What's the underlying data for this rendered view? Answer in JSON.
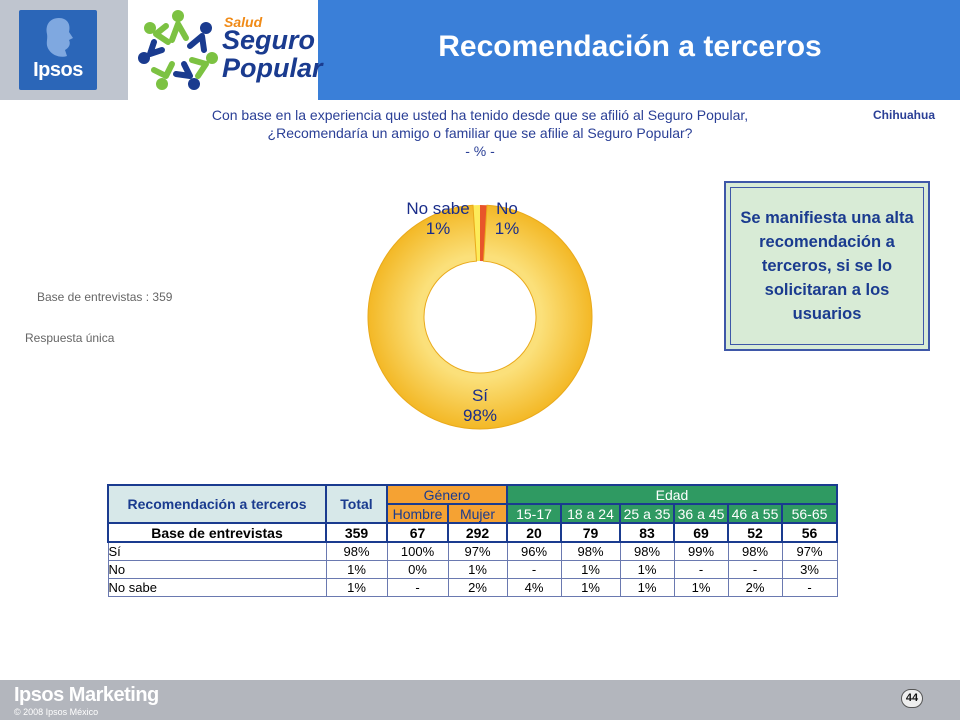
{
  "header": {
    "title": "Recomendación a terceros",
    "ipsos_logo": "Ipsos",
    "brand_logo_salud": "Salud",
    "brand_logo_seguro": "Seguro",
    "brand_logo_popular": "Popular"
  },
  "question": {
    "line1": "Con base en la experiencia que usted ha tenido desde que se afilió al Seguro Popular,",
    "line2": "¿Recomendaría un amigo o familiar que se afilie al Seguro Popular?",
    "line3": "- % -"
  },
  "region": "Chihuahua",
  "notes": {
    "base": "Base de entrevistas : 359",
    "response": "Respuesta única"
  },
  "callout": "Se manifiesta una alta recomendación a terceros, si se lo solicitaran a los usuarios",
  "chart_data": {
    "type": "pie",
    "donut": true,
    "categories": [
      "Sí",
      "No sabe",
      "No"
    ],
    "values": [
      98,
      1,
      1
    ],
    "labels": [
      "98%",
      "1%",
      "1%"
    ],
    "colors": [
      "#f7c530",
      "#fdeb5a",
      "#e8552a"
    ]
  },
  "table": {
    "title": "Recomendación a terceros",
    "total_label": "Total",
    "genero_label": "Género",
    "edad_label": "Edad",
    "subheaders": [
      "Hombre",
      "Mujer",
      "15-17",
      "18 a 24",
      "25 a 35",
      "36 a 45",
      "46 a 55",
      "56-65"
    ],
    "base_label": "Base de entrevistas",
    "base": [
      "359",
      "67",
      "292",
      "20",
      "79",
      "83",
      "69",
      "52",
      "56"
    ],
    "rows": [
      {
        "label": "Sí",
        "values": [
          "98%",
          "100%",
          "97%",
          "96%",
          "98%",
          "98%",
          "99%",
          "98%",
          "97%"
        ]
      },
      {
        "label": "No",
        "values": [
          "1%",
          "0%",
          "1%",
          "-",
          "1%",
          "1%",
          "-",
          "-",
          "3%"
        ]
      },
      {
        "label": "No sabe",
        "values": [
          "1%",
          "-",
          "2%",
          "4%",
          "1%",
          "1%",
          "1%",
          "2%",
          "-"
        ]
      }
    ]
  },
  "footer": {
    "brand": "Ipsos Marketing",
    "copyright": "© 2008 Ipsos México",
    "page": "44"
  }
}
